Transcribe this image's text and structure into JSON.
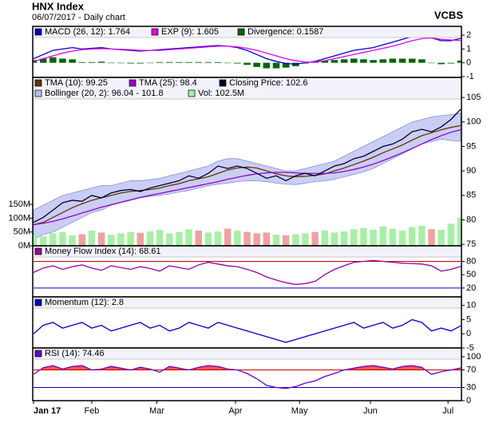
{
  "header": {
    "title": "HNX Index",
    "subtitle": "06/07/2017 - Daily chart",
    "source": "VCBS"
  },
  "chart_data": [
    {
      "type": "line",
      "xlim": [
        0,
        44
      ],
      "ylim": [
        -1.06,
        2.64
      ],
      "yticks": [
        -1,
        0,
        1,
        2
      ],
      "series": [
        {
          "name": "MACD (26, 12): 1.764",
          "type": "line",
          "color": "#0000cc",
          "values": [
            0.3,
            0.6,
            0.9,
            1.0,
            1.1,
            1.0,
            1.05,
            1.1,
            1.0,
            0.95,
            0.9,
            0.85,
            0.9,
            0.95,
            1.0,
            1.05,
            1.1,
            1.15,
            1.2,
            1.25,
            1.2,
            1.1,
            0.9,
            0.6,
            0.3,
            0.1,
            -0.05,
            -0.1,
            0,
            0.1,
            0.3,
            0.5,
            0.7,
            0.9,
            1.0,
            1.1,
            1.3,
            1.5,
            1.7,
            1.9,
            2.0,
            1.8,
            1.6,
            1.6,
            1.764
          ]
        },
        {
          "name": "EXP (9): 1.605",
          "type": "line",
          "color": "#e600e6",
          "values": [
            0.1,
            0.3,
            0.5,
            0.7,
            0.85,
            0.95,
            1.0,
            1.02,
            1.0,
            0.98,
            0.95,
            0.9,
            0.9,
            0.9,
            0.95,
            1.0,
            1.05,
            1.1,
            1.15,
            1.2,
            1.2,
            1.15,
            1.05,
            0.9,
            0.7,
            0.5,
            0.3,
            0.15,
            0.05,
            0.05,
            0.15,
            0.3,
            0.45,
            0.6,
            0.75,
            0.9,
            1.05,
            1.2,
            1.4,
            1.6,
            1.75,
            1.8,
            1.7,
            1.65,
            1.605
          ]
        },
        {
          "name": "Divergence: 0.1587",
          "type": "bar",
          "color": "#006600",
          "values": [
            0.2,
            0.3,
            0.4,
            0.3,
            0.25,
            0.05,
            0.05,
            0.08,
            0,
            -0.03,
            -0.05,
            -0.05,
            0,
            0.05,
            0.05,
            0.05,
            0.05,
            0.05,
            0.05,
            0.05,
            0,
            -0.05,
            -0.15,
            -0.3,
            -0.4,
            -0.4,
            -0.35,
            -0.25,
            -0.05,
            0.05,
            0.15,
            0.2,
            0.25,
            0.3,
            0.25,
            0.2,
            0.25,
            0.3,
            0.3,
            0.3,
            0.25,
            0,
            -0.1,
            -0.05,
            0.1587
          ]
        }
      ]
    },
    {
      "type": "line",
      "xlim": [
        0,
        44
      ],
      "ylim": [
        74.7,
        109.1
      ],
      "yticks": [
        75,
        80,
        85,
        90,
        95,
        100,
        105
      ],
      "y2lim": [
        0,
        609
      ],
      "y2ticks": [
        {
          "value": 0,
          "label": "0M"
        },
        {
          "value": 50,
          "label": "50M"
        },
        {
          "value": 100,
          "label": "100M"
        },
        {
          "value": 150,
          "label": "150M"
        }
      ],
      "series": [
        {
          "name": "TMA (10): 99.25",
          "type": "line",
          "color": "#663300",
          "values": [
            79,
            79.5,
            80.5,
            81.5,
            82.5,
            83.3,
            84,
            84.5,
            85,
            85.5,
            85.8,
            86,
            86.2,
            86.5,
            87,
            87.4,
            88,
            88.4,
            88.8,
            89.5,
            90.2,
            90.6,
            90.8,
            90.6,
            90,
            89.4,
            89,
            88.8,
            88.9,
            89.1,
            89.4,
            90,
            90.6,
            91.3,
            92,
            92.8,
            93.7,
            94.5,
            95.3,
            96.3,
            97.2,
            97.8,
            98.4,
            98.9,
            99.25
          ]
        },
        {
          "name": "TMA (25): 98.4",
          "type": "line",
          "color": "#9900cc",
          "values": [
            79,
            79.3,
            79.7,
            80.2,
            80.8,
            81.4,
            82,
            82.6,
            83.1,
            83.6,
            84.1,
            84.6,
            85,
            85.4,
            85.8,
            86.2,
            86.6,
            87,
            87.4,
            87.8,
            88.3,
            88.7,
            89.1,
            89.4,
            89.6,
            89.7,
            89.7,
            89.6,
            89.5,
            89.5,
            89.5,
            89.6,
            89.9,
            90.3,
            90.8,
            91.4,
            92.1,
            92.9,
            93.7,
            94.6,
            95.5,
            96.4,
            97.2,
            97.9,
            98.4
          ]
        },
        {
          "name": "Closing Price: 102.6",
          "type": "line",
          "color": "#000033",
          "values": [
            79.5,
            80.5,
            82,
            83.5,
            84,
            83.8,
            85,
            84.5,
            85.5,
            86,
            86.2,
            85.8,
            86.5,
            87,
            87.5,
            88,
            89,
            88.5,
            89.5,
            91,
            90.5,
            91,
            90.5,
            89.5,
            88.5,
            89,
            88,
            89,
            89.5,
            89,
            90,
            91,
            91.5,
            92.5,
            93,
            94,
            95,
            95.5,
            96.5,
            98,
            98.5,
            98,
            99,
            100.5,
            102.6
          ]
        },
        {
          "name": "Bollinger (20, 2): 96.04 - 101.8",
          "type": "band",
          "color": "#b8bdf0",
          "upper": [
            82,
            83,
            84,
            85,
            85.5,
            86,
            86.5,
            87,
            87,
            87.5,
            88,
            88,
            88.2,
            88.5,
            89,
            89.5,
            90,
            90.5,
            91,
            92,
            92.5,
            92.5,
            92,
            91.5,
            91,
            90.5,
            90,
            90,
            90.5,
            91,
            91.5,
            92,
            93,
            94,
            95,
            96,
            97,
            98,
            99,
            100,
            100.5,
            101,
            101.3,
            101.5,
            101.8
          ],
          "lower": [
            76,
            77,
            77.5,
            78.5,
            79.5,
            80.5,
            81.5,
            82,
            83,
            83.5,
            84,
            84.5,
            84.8,
            85,
            85.3,
            85.7,
            86,
            86.5,
            87,
            87.3,
            87.5,
            87.8,
            88,
            88,
            87.8,
            87.5,
            87.3,
            87.2,
            87.5,
            87.8,
            88,
            88.3,
            88.8,
            89.3,
            89.8,
            90.5,
            91.5,
            92.5,
            93.5,
            94.5,
            95.5,
            96,
            96.5,
            96.2,
            96.04
          ]
        },
        {
          "name": "Vol: 102.5M",
          "type": "volume",
          "axis": "y2",
          "color": "#a6f0a6",
          "down_color": "#f0a0a0",
          "values": [
            40,
            35,
            45,
            50,
            38,
            42,
            55,
            48,
            40,
            45,
            50,
            47,
            52,
            58,
            45,
            50,
            60,
            55,
            48,
            52,
            62,
            55,
            50,
            45,
            48,
            40,
            38,
            42,
            45,
            50,
            55,
            48,
            52,
            60,
            65,
            58,
            70,
            62,
            55,
            68,
            72,
            60,
            58,
            80,
            102.5
          ]
        }
      ]
    },
    {
      "type": "line",
      "xlim": [
        0,
        44
      ],
      "ylim": [
        0,
        115
      ],
      "yticks": [
        20,
        50,
        80
      ],
      "hlines": [
        {
          "value": 80,
          "color": "#cc0000",
          "fill": true
        },
        {
          "value": 20,
          "color": "#0000cc",
          "fill": false
        }
      ],
      "series": [
        {
          "name": "Money Flow Index (14): 68.61",
          "type": "line",
          "color": "#990099",
          "values": [
            55,
            65,
            70,
            62,
            68,
            72,
            65,
            60,
            70,
            66,
            62,
            68,
            64,
            58,
            70,
            66,
            62,
            72,
            78,
            74,
            70,
            68,
            62,
            55,
            45,
            38,
            32,
            28,
            30,
            35,
            50,
            62,
            70,
            78,
            80,
            82,
            80,
            78,
            76,
            75,
            74,
            70,
            58,
            62,
            68.61
          ]
        }
      ]
    },
    {
      "type": "line",
      "xlim": [
        0,
        44
      ],
      "ylim": [
        -5,
        13
      ],
      "yticks": [
        -5,
        0,
        5,
        10
      ],
      "series": [
        {
          "name": "Momentum (12): 2.8",
          "type": "line",
          "color": "#0000cc",
          "values": [
            0,
            3,
            4,
            2,
            3,
            4,
            2,
            3,
            1,
            2,
            3,
            4,
            2,
            3,
            1,
            2,
            4,
            3,
            2,
            4,
            3,
            2,
            1,
            0,
            -1,
            -2,
            -3,
            -2,
            -1,
            0,
            1,
            2,
            3,
            4,
            2,
            3,
            4,
            2,
            3,
            5,
            4,
            1,
            2,
            1,
            2.8
          ]
        }
      ]
    },
    {
      "type": "line",
      "xlim": [
        0,
        44
      ],
      "ylim": [
        0,
        120
      ],
      "yticks": [
        0,
        30,
        70,
        100
      ],
      "hlines": [
        {
          "value": 70,
          "color": "#cc0000",
          "fill": true
        },
        {
          "value": 30,
          "color": "#0000cc",
          "fill": false
        }
      ],
      "xticks": [
        {
          "value": 0,
          "label": "Jan 17"
        },
        {
          "value": 6,
          "label": "Feb"
        },
        {
          "value": 12.7,
          "label": "Mar"
        },
        {
          "value": 20.8,
          "label": "Apr"
        },
        {
          "value": 27.4,
          "label": "May"
        },
        {
          "value": 34.7,
          "label": "Jun"
        },
        {
          "value": 42.7,
          "label": "Jul"
        }
      ],
      "series": [
        {
          "name": "RSI (14): 74.46",
          "type": "line",
          "color": "#6600cc",
          "values": [
            60,
            75,
            80,
            72,
            78,
            80,
            70,
            72,
            78,
            74,
            70,
            76,
            72,
            65,
            78,
            74,
            70,
            76,
            80,
            78,
            72,
            70,
            62,
            50,
            35,
            30,
            28,
            32,
            40,
            45,
            55,
            62,
            70,
            74,
            78,
            80,
            76,
            72,
            78,
            80,
            76,
            60,
            66,
            70,
            74.46
          ]
        }
      ]
    }
  ]
}
